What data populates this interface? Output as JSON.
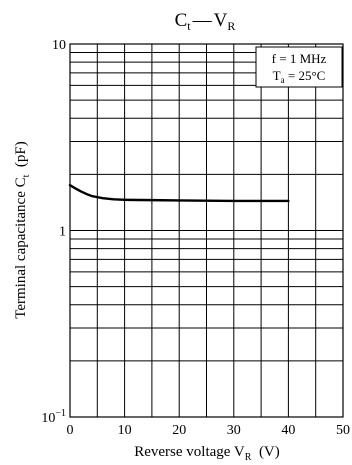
{
  "chart_data": {
    "type": "line",
    "title": {
      "main": "C",
      "main_sub": "t",
      "dash": "—",
      "var": "V",
      "var_sub": "R"
    },
    "xlabel": {
      "text": "Reverse voltage  V",
      "sub": "R",
      "unit": "  (V)"
    },
    "ylabel": {
      "text": "Terminal capacitance  C",
      "sub": "t",
      "unit": "  (pF)"
    },
    "x_scale": "linear",
    "y_scale": "log",
    "xlim": [
      0,
      50
    ],
    "ylim": [
      0.1,
      10
    ],
    "x_ticks": [
      0,
      10,
      20,
      30,
      40,
      50
    ],
    "x_tick_labels": [
      "0",
      "10",
      "20",
      "30",
      "40",
      "50"
    ],
    "y_ticks": [
      0.1,
      1,
      10
    ],
    "y_tick_labels": [
      {
        "base": "10",
        "sup": "−1"
      },
      {
        "base": "1",
        "sup": ""
      },
      {
        "base": "10",
        "sup": ""
      }
    ],
    "grid": true,
    "conditions": [
      {
        "text": "f = 1 MHz",
        "sub": "",
        "rest": ""
      },
      {
        "text": "T",
        "sub": "a",
        "rest": " = 25°C"
      }
    ],
    "legend_placement": "top-right",
    "series": [
      {
        "x": [
          0,
          1,
          2,
          3,
          4,
          5,
          6,
          8,
          10,
          15,
          20,
          25,
          30,
          35,
          40
        ],
        "y": [
          1.75,
          1.68,
          1.62,
          1.57,
          1.53,
          1.51,
          1.49,
          1.47,
          1.46,
          1.455,
          1.45,
          1.445,
          1.44,
          1.44,
          1.44
        ]
      }
    ],
    "colors": {
      "line": "#000000",
      "grid": "#000000"
    }
  }
}
